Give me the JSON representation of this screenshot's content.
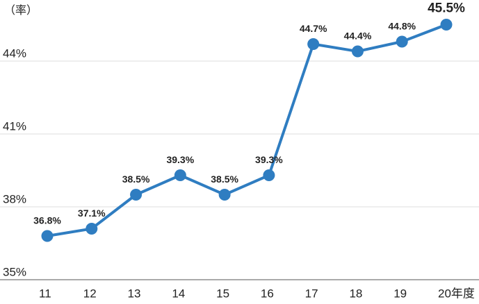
{
  "chart_data": {
    "type": "line",
    "y_label": "（率）",
    "categories": [
      "11",
      "12",
      "13",
      "14",
      "15",
      "16",
      "17",
      "18",
      "19",
      "20年度"
    ],
    "series": [
      {
        "name": "率",
        "color": "#2f7dc1",
        "values": [
          36.8,
          37.1,
          38.5,
          39.3,
          38.5,
          39.3,
          44.7,
          44.4,
          44.8,
          45.5
        ],
        "value_labels": [
          "36.8%",
          "37.1%",
          "38.5%",
          "39.3%",
          "38.5%",
          "39.3%",
          "44.7%",
          "44.4%",
          "44.8%",
          "45.5%"
        ]
      }
    ],
    "ylim": [
      35,
      46
    ],
    "yticks": [
      {
        "value": 35,
        "label": "35%"
      },
      {
        "value": 38,
        "label": "38%"
      },
      {
        "value": 41,
        "label": "41%"
      },
      {
        "value": 44,
        "label": "44%"
      }
    ],
    "grid": true
  }
}
